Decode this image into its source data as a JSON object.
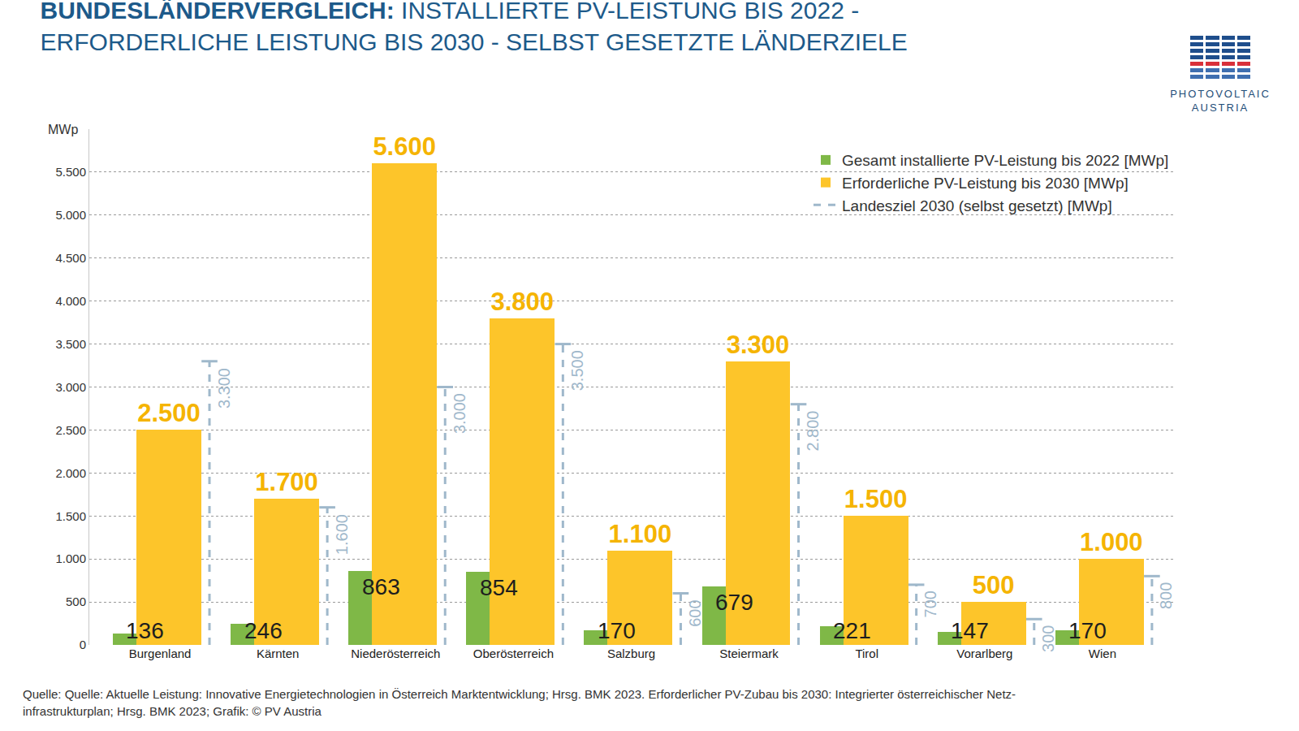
{
  "chart_data": {
    "type": "bar",
    "title": "BUNDESLÄNDERVERGLEICH:",
    "subtitle": [
      "INSTALLIERTE PV-LEISTUNG BIS 2022 -",
      "ERFORDERLICHE LEISTUNG BIS 2030 - SELBST GESETZTE LÄNDERZIELE"
    ],
    "y_axis_label": "MWp",
    "categories": [
      "Burgenland",
      "Kärnten",
      "Niederösterreich",
      "Oberösterreich",
      "Salzburg",
      "Steiermark",
      "Tirol",
      "Vorarlberg",
      "Wien"
    ],
    "series": [
      {
        "name": "Gesamt installierte PV-Leistung bis 2022 [MWp]",
        "type": "bar",
        "color": "#7fb847",
        "values": [
          136,
          246,
          863,
          854,
          170,
          679,
          221,
          147,
          170
        ]
      },
      {
        "name": "Erforderliche PV-Leistung bis 2030 [MWp]",
        "type": "bar",
        "color": "#fdc52a",
        "values": [
          2500,
          1700,
          5600,
          3800,
          1100,
          3300,
          1500,
          500,
          1000
        ],
        "value_labels": [
          "2.500",
          "1.700",
          "5.600",
          "3.800",
          "1.100",
          "3.300",
          "1.500",
          "500",
          "1.000"
        ]
      },
      {
        "name": "Landesziel 2030 (selbst gesetzt) [MWp]",
        "type": "line",
        "line_style": "dashed",
        "color": "#9fb8cb",
        "values": [
          3300,
          1600,
          3000,
          3500,
          600,
          2800,
          700,
          300,
          800
        ],
        "value_labels": [
          "3.300",
          "1.600",
          "3.000",
          "3.500",
          "600",
          "2.800",
          "700",
          "300",
          "800"
        ]
      }
    ],
    "ylim": [
      0,
      6000
    ],
    "yticks": [
      0,
      500,
      {
        "value": 1000,
        "label": "1.000"
      },
      {
        "value": 1500,
        "label": "1.500"
      },
      {
        "value": 2000,
        "label": "2.000"
      },
      {
        "value": 2500,
        "label": "2.500"
      },
      {
        "value": 3000,
        "label": "3.000"
      },
      {
        "value": 3500,
        "label": "3.500"
      },
      {
        "value": 4000,
        "label": "4.000"
      },
      {
        "value": 4500,
        "label": "4.500"
      },
      {
        "value": 5000,
        "label": "5.000"
      },
      {
        "value": 5500,
        "label": "5.500"
      }
    ],
    "grid": true,
    "data_labels": true,
    "legend": "upper right",
    "source": [
      "Quelle: Quelle: Aktuelle Leistung: Innovative Energietechnologien in Österreich Marktentwicklung; Hrsg. BMK 2023. Erforderlicher PV-Zubau bis 2030: Integrierter österreichischer Netz-",
      "infrastrukturplan; Hrsg. BMK 2023; Grafik: © PV Austria"
    ],
    "logo": [
      "PHOTOVOLTAIC",
      "AUSTRIA"
    ]
  }
}
